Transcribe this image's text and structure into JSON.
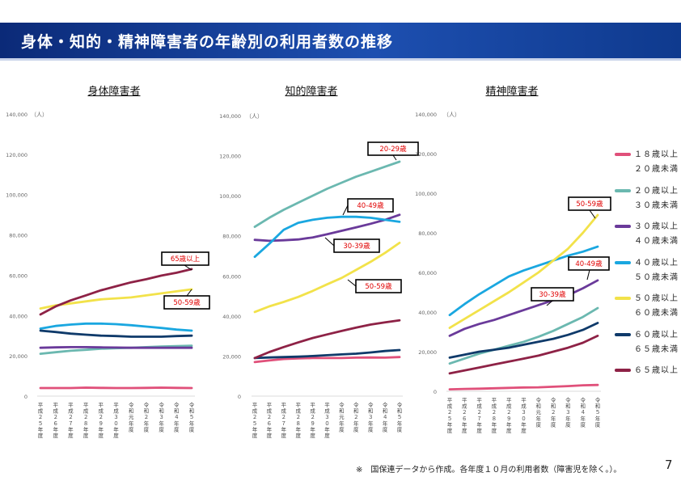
{
  "header": {
    "title": "身体・知的・精神障害者の年齢別の利用者数の推移"
  },
  "footnote": "※　国保連データから作成。各年度１０月の利用者数（障害児を除く。）。",
  "page_number": "7",
  "legend": [
    {
      "label": "１８歳以上 ２０歳未満",
      "color": "#e0507a"
    },
    {
      "label": "２０歳以上 ３０歳未満",
      "color": "#6bb8b0"
    },
    {
      "label": "３０歳以上 ４０歳未満",
      "color": "#6a3a9a"
    },
    {
      "label": "４０歳以上 ５０歳未満",
      "color": "#1aa7e0"
    },
    {
      "label": "５０歳以上 ６０歳未満",
      "color": "#f2e24a"
    },
    {
      "label": "６０歳以上 ６５歳未満",
      "color": "#0f3a6a"
    },
    {
      "label": "６５歳以上",
      "color": "#8e2246"
    }
  ],
  "chart_data": [
    {
      "type": "line",
      "title": "身体障害者",
      "ylabel": "（人）",
      "ylim": [
        0,
        140000
      ],
      "yticks": [
        "0",
        "20,000",
        "40,000",
        "60,000",
        "80,000",
        "100,000",
        "120,000",
        "140,000"
      ],
      "categories": [
        "平成２５年度",
        "平成２６年度",
        "平成２７年度",
        "平成２８年度",
        "平成２９年度",
        "平成３０年度",
        "令和元年度",
        "令和２年度",
        "令和３年度",
        "令和４年度",
        "令和５年度"
      ],
      "series": [
        {
          "name": "１８歳以上 ２０歳未満",
          "color": "#e0507a",
          "values": [
            4000,
            4000,
            4000,
            4200,
            4100,
            4000,
            4000,
            4100,
            4200,
            4100,
            4000
          ]
        },
        {
          "name": "２０歳以上 ３０歳未満",
          "color": "#6bb8b0",
          "values": [
            21000,
            21800,
            22500,
            23000,
            23500,
            23800,
            24000,
            24300,
            24600,
            24800,
            25000
          ]
        },
        {
          "name": "３０歳以上 ４０歳未満",
          "color": "#6a3a9a",
          "values": [
            24000,
            24200,
            24300,
            24300,
            24200,
            24100,
            24000,
            24000,
            24000,
            24000,
            24000
          ]
        },
        {
          "name": "４０歳以上 ５０歳未満",
          "color": "#1aa7e0",
          "values": [
            33500,
            34800,
            35500,
            36000,
            36000,
            35700,
            35200,
            34500,
            33800,
            33000,
            32500
          ]
        },
        {
          "name": "５０歳以上 ６０歳未満",
          "color": "#f2e24a",
          "values": [
            43500,
            45000,
            46000,
            47000,
            48000,
            48500,
            49000,
            50000,
            51000,
            52000,
            53000
          ]
        },
        {
          "name": "６０歳以上 ６５歳未満",
          "color": "#0f3a6a",
          "values": [
            32500,
            31800,
            31000,
            30500,
            30000,
            29800,
            29500,
            29500,
            29500,
            29800,
            30000
          ]
        },
        {
          "name": "６５歳以上",
          "color": "#8e2246",
          "values": [
            40500,
            44500,
            47500,
            50000,
            52500,
            54500,
            56500,
            58000,
            59800,
            61200,
            63000
          ]
        }
      ],
      "annotations": [
        "65歳以上",
        "50-59歳"
      ]
    },
    {
      "type": "line",
      "title": "知的障害者",
      "ylabel": "（人）",
      "ylim": [
        0,
        140000
      ],
      "yticks": [
        "0",
        "20,000",
        "40,000",
        "60,000",
        "80,000",
        "100,000",
        "120,000",
        "140,000"
      ],
      "categories": [
        "平成２５年度",
        "平成２６年度",
        "平成２７年度",
        "平成２８年度",
        "平成２９年度",
        "平成３０年度",
        "令和元年度",
        "令和２年度",
        "令和３年度",
        "令和４年度",
        "令和５年度"
      ],
      "series": [
        {
          "name": "１８歳以上 ２０歳未満",
          "color": "#e0507a",
          "values": [
            17000,
            17800,
            18500,
            18800,
            19000,
            19000,
            19000,
            19200,
            19300,
            19200,
            19500
          ]
        },
        {
          "name": "２０歳以上 ３０歳未満",
          "color": "#6bb8b0",
          "values": [
            84500,
            89000,
            93000,
            96500,
            100000,
            103500,
            106500,
            109500,
            112000,
            114500,
            117000
          ]
        },
        {
          "name": "３０歳以上 ４０歳未満",
          "color": "#6a3a9a",
          "values": [
            78000,
            77500,
            77800,
            78200,
            79200,
            80800,
            82500,
            84200,
            86000,
            88000,
            90500
          ]
        },
        {
          "name": "４０歳以上 ５０歳未満",
          "color": "#1aa7e0",
          "values": [
            69500,
            76000,
            83000,
            86500,
            88000,
            89000,
            89500,
            89500,
            89000,
            88000,
            87000
          ]
        },
        {
          "name": "５０歳以上 ６０歳未満",
          "color": "#f2e24a",
          "values": [
            42000,
            44800,
            47000,
            49500,
            52500,
            55800,
            59000,
            63000,
            67000,
            71500,
            76500
          ]
        },
        {
          "name": "６０歳以上 ６５歳未満",
          "color": "#0f3a6a",
          "values": [
            19000,
            19300,
            19500,
            19700,
            20000,
            20400,
            20800,
            21200,
            21800,
            22500,
            23000
          ]
        },
        {
          "name": "６５歳以上",
          "color": "#8e2246",
          "values": [
            19000,
            22000,
            24500,
            26800,
            29000,
            30800,
            32500,
            34200,
            35700,
            36800,
            37800
          ]
        }
      ],
      "annotations": [
        "20-29歳",
        "40-49歳",
        "30-39歳",
        "50-59歳"
      ]
    },
    {
      "type": "line",
      "title": "精神障害者",
      "ylabel": "（人）",
      "ylim": [
        0,
        140000
      ],
      "yticks": [
        "0",
        "20,000",
        "40,000",
        "60,000",
        "80,000",
        "100,000",
        "120,000",
        "140,000"
      ],
      "categories": [
        "平成２５年度",
        "平成２６年度",
        "平成２７年度",
        "平成２８年度",
        "平成２９年度",
        "平成３０年度",
        "令和元年度",
        "令和２年度",
        "令和３年度",
        "令和４年度",
        "令和５年度"
      ],
      "series": [
        {
          "name": "１８歳以上 ２０歳未満",
          "color": "#e0507a",
          "values": [
            1000,
            1200,
            1300,
            1500,
            1700,
            1900,
            2000,
            2300,
            2600,
            3000,
            3200
          ]
        },
        {
          "name": "２０歳以上 ３０歳未満",
          "color": "#6bb8b0",
          "values": [
            14000,
            16500,
            19000,
            21000,
            23000,
            25000,
            27500,
            30500,
            34000,
            37500,
            42000
          ]
        },
        {
          "name": "３０歳以上 ４０歳未満",
          "color": "#6a3a9a",
          "values": [
            28000,
            31500,
            34000,
            36000,
            38500,
            41000,
            43500,
            46000,
            48500,
            52000,
            56000
          ]
        },
        {
          "name": "４０歳以上 ５０歳未満",
          "color": "#1aa7e0",
          "values": [
            38500,
            44000,
            49000,
            53500,
            58000,
            61000,
            63500,
            66000,
            68500,
            70500,
            73000
          ]
        },
        {
          "name": "５０歳以上 ６０歳未満",
          "color": "#f2e24a",
          "values": [
            32000,
            36500,
            41000,
            45500,
            50000,
            55000,
            60000,
            66000,
            72000,
            80000,
            89000
          ]
        },
        {
          "name": "６０歳以上 ６５歳未満",
          "color": "#0f3a6a",
          "values": [
            17000,
            18500,
            20000,
            21000,
            22000,
            23500,
            25000,
            26500,
            28500,
            31000,
            34500
          ]
        },
        {
          "name": "６５歳以上",
          "color": "#8e2246",
          "values": [
            9000,
            10500,
            12000,
            13500,
            15000,
            16500,
            18000,
            20000,
            22000,
            24500,
            28000
          ]
        }
      ],
      "annotations": [
        "50-59歳",
        "40-49歳",
        "30-39歳"
      ]
    }
  ]
}
